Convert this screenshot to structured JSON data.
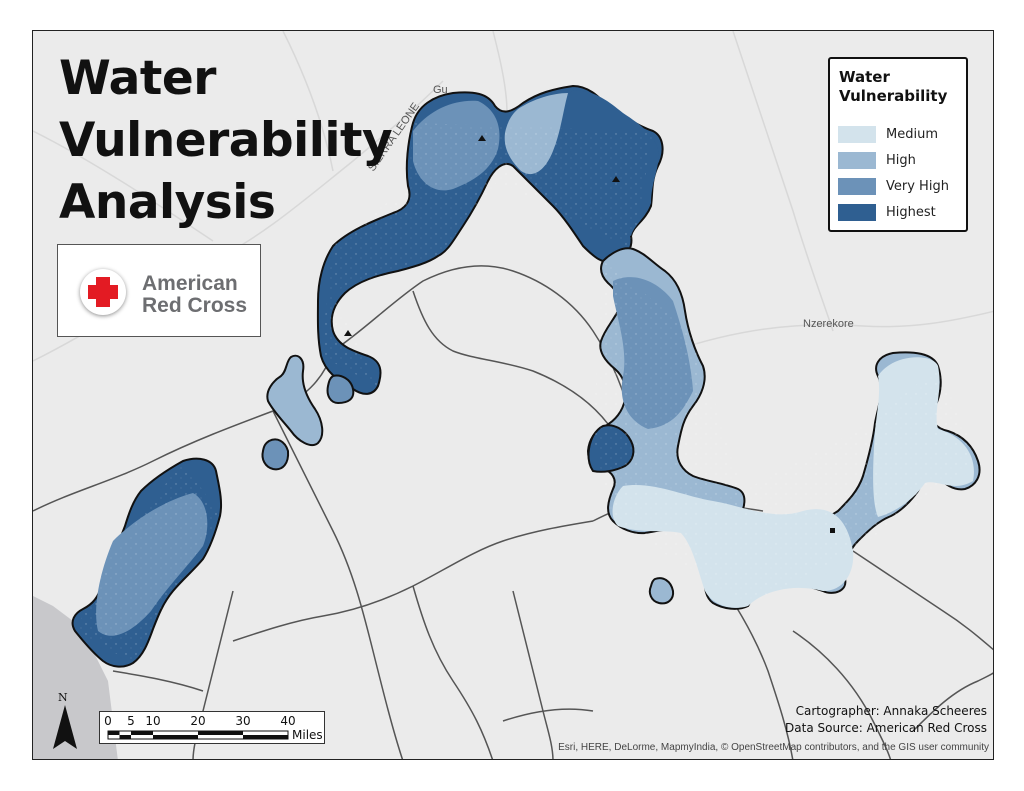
{
  "map": {
    "title_lines": [
      "Water",
      "Vulnerability",
      "Analysis"
    ],
    "logo": {
      "line1": "American",
      "line2": "Red Cross",
      "cross_color": "#e31b23",
      "text_color": "#6d6e71"
    },
    "legend": {
      "title": "Water Vulnerability",
      "items": [
        {
          "label": "Medium",
          "color": "#d3e3ec"
        },
        {
          "label": "High",
          "color": "#9bb8d2"
        },
        {
          "label": "Very High",
          "color": "#6c92b8"
        },
        {
          "label": "Highest",
          "color": "#2f5f91"
        }
      ]
    },
    "place_labels": [
      "Gu",
      "SIERRA LEONE",
      "Nzerekore"
    ],
    "north_label": "N",
    "scale": {
      "ticks": [
        "0",
        "5",
        "10",
        "20",
        "30",
        "40"
      ],
      "units": "Miles"
    },
    "credits": {
      "cartographer": "Cartographer: Annaka Scheeres",
      "source": "Data Source: American Red Cross"
    },
    "attribution": "Esri, HERE, DeLorme, MapmyIndia, © OpenStreetMap contributors, and the GIS user community"
  }
}
